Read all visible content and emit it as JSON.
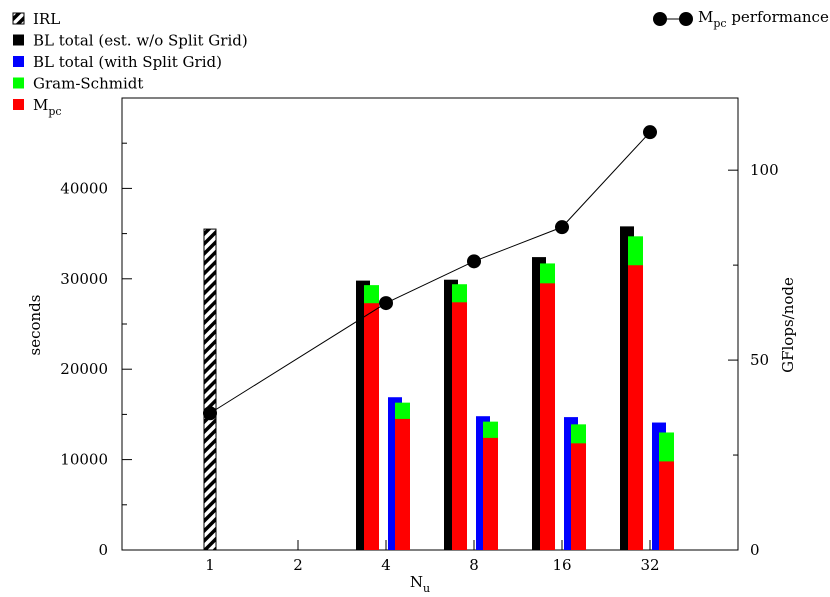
{
  "chart_data": {
    "type": "bar",
    "categories": [
      "1",
      "2",
      "4",
      "8",
      "16",
      "32"
    ],
    "xlabel": "N",
    "xlabel_sub": "u",
    "ylabel": "seconds",
    "y2label": "GFlops/node",
    "ylim": [
      0,
      50000
    ],
    "y2lim": [
      0,
      119
    ],
    "y_ticks": [
      "0",
      "10000",
      "20000",
      "30000",
      "40000"
    ],
    "y2_ticks": [
      "0",
      "50",
      "100"
    ],
    "y_tick_values": [
      0,
      10000,
      20000,
      30000,
      40000
    ],
    "y2_tick_values": [
      0,
      50,
      100
    ],
    "grid": false,
    "legend": {
      "placement": "top-left",
      "entries": [
        {
          "key": "irl",
          "label": "IRL",
          "sub": "",
          "color": "#000000",
          "pattern": "hatch"
        },
        {
          "key": "bl_est",
          "label": "BL total (est. w/o Split Grid)",
          "sub": "",
          "color": "#000000"
        },
        {
          "key": "bl_split",
          "label": "BL total (with Split Grid)",
          "sub": "",
          "color": "#0000ff"
        },
        {
          "key": "gs",
          "label": "Gram-Schmidt",
          "sub": "",
          "color": "#00ff00"
        },
        {
          "key": "mpc",
          "label": "M",
          "sub": "pc",
          "color": "#ff0000"
        }
      ]
    },
    "legend_line": {
      "label": "M",
      "sub": "pc",
      "suffix": " performance",
      "placement": "top-right"
    },
    "series": [
      {
        "key": "irl",
        "values": [
          35500,
          null,
          null,
          null,
          null,
          null
        ]
      },
      {
        "key": "bl_est",
        "values": [
          null,
          null,
          29800,
          29900,
          32400,
          35800
        ]
      },
      {
        "key": "gs_est_total",
        "values": [
          null,
          null,
          29300,
          29400,
          31700,
          34700
        ]
      },
      {
        "key": "mpc_est",
        "values": [
          null,
          null,
          27300,
          27400,
          29500,
          31500
        ]
      },
      {
        "key": "bl_split",
        "values": [
          null,
          null,
          16900,
          14800,
          14700,
          14100
        ]
      },
      {
        "key": "gs_split_total",
        "values": [
          null,
          null,
          16300,
          14200,
          13900,
          13000
        ]
      },
      {
        "key": "mpc_split",
        "values": [
          null,
          null,
          14500,
          12400,
          11800,
          9800
        ]
      }
    ],
    "performance": {
      "name": "M_pc performance",
      "axis": "right",
      "values": [
        36,
        null,
        65,
        76,
        85,
        110
      ]
    },
    "colors": {
      "black": "#000000",
      "blue": "#0000ff",
      "green": "#00ff00",
      "red": "#ff0000"
    }
  }
}
